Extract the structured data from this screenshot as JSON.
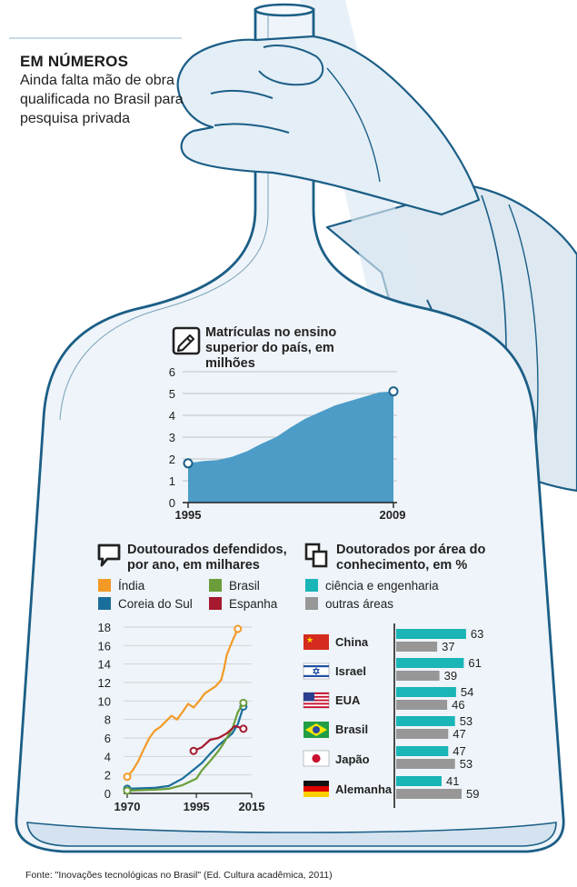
{
  "header": {
    "title": "EM NÚMEROS",
    "subtitle": "Ainda falta mão de obra qualificada no Brasil para pesquisa privada"
  },
  "source": "Fonte: \"Inovações tecnológicas no Brasil\" (Ed. Cultura acadêmica, 2011)",
  "colors": {
    "ink": "#1b5e86",
    "area": "#4c9cc7",
    "glass": "#e1ecf5"
  },
  "chart_data": [
    {
      "type": "area",
      "title": "Matrículas no ensino superior do país, em milhões",
      "icon": "pencil-icon",
      "x_labels": [
        "1995",
        "2009"
      ],
      "x": [
        1995,
        1996,
        1997,
        1998,
        1999,
        2000,
        2001,
        2002,
        2003,
        2004,
        2005,
        2006,
        2007,
        2008,
        2009
      ],
      "values": [
        1.8,
        1.9,
        1.95,
        2.1,
        2.35,
        2.7,
        3.0,
        3.45,
        3.85,
        4.15,
        4.45,
        4.65,
        4.85,
        5.05,
        5.1
      ],
      "ylim": [
        0,
        6
      ],
      "yticks": [
        0,
        1,
        2,
        3,
        4,
        5,
        6
      ],
      "grid": true
    },
    {
      "type": "line",
      "title": "Doutourados defendidos, por ano, em milhares",
      "icon": "speech-bubble-icon",
      "legend_position": "top",
      "xticks": [
        1970,
        1995,
        2015
      ],
      "xlim": [
        1970,
        2015
      ],
      "ylim": [
        0,
        18
      ],
      "yticks": [
        0,
        2,
        4,
        6,
        8,
        10,
        12,
        14,
        16,
        18
      ],
      "series": [
        {
          "name": "Índia",
          "color": "#f39a26",
          "x": [
            1970,
            1972,
            1974,
            1976,
            1978,
            1980,
            1982,
            1984,
            1986,
            1988,
            1990,
            1992,
            1994,
            1996,
            1998,
            2000,
            2002,
            2004,
            2005,
            2006,
            2008,
            2010
          ],
          "y": [
            1.8,
            2.5,
            3.5,
            4.8,
            6.0,
            6.8,
            7.2,
            7.8,
            8.4,
            8.0,
            8.8,
            9.7,
            9.3,
            10.0,
            10.8,
            11.2,
            11.6,
            12.3,
            13.5,
            15.0,
            16.5,
            17.8
          ]
        },
        {
          "name": "Coreia do Sul",
          "color": "#1a6e9b",
          "x": [
            1970,
            1980,
            1985,
            1990,
            1995,
            1997,
            2000,
            2003,
            2005,
            2008,
            2010,
            2012
          ],
          "y": [
            0.5,
            0.6,
            0.8,
            1.6,
            2.8,
            3.3,
            4.3,
            5.2,
            5.7,
            6.5,
            7.5,
            9.4
          ]
        },
        {
          "name": "Brasil",
          "color": "#6b9e3a",
          "x": [
            1970,
            1980,
            1985,
            1990,
            1995,
            1997,
            2000,
            2003,
            2005,
            2008,
            2010,
            2012
          ],
          "y": [
            0.3,
            0.4,
            0.5,
            0.9,
            1.6,
            2.5,
            3.5,
            4.6,
            5.5,
            7.0,
            8.8,
            9.8
          ]
        },
        {
          "name": "Espanha",
          "color": "#a6192e",
          "x": [
            1994,
            1997,
            2000,
            2003,
            2006,
            2009,
            2012
          ],
          "y": [
            4.6,
            5.0,
            5.8,
            6.0,
            6.5,
            7.3,
            7.0
          ]
        }
      ]
    },
    {
      "type": "bar",
      "orientation": "horizontal",
      "title": "Doutorados por área do conhecimento, em %",
      "icon": "document-icon",
      "series_names": [
        "ciência e engenharia",
        "outras áreas"
      ],
      "series_colors": [
        "#1ab5b6",
        "#979797"
      ],
      "categories": [
        {
          "label": "China",
          "flag": "china-flag-icon",
          "values": [
            63,
            37
          ]
        },
        {
          "label": "Israel",
          "flag": "israel-flag-icon",
          "values": [
            61,
            39
          ]
        },
        {
          "label": "EUA",
          "flag": "usa-flag-icon",
          "values": [
            54,
            46
          ]
        },
        {
          "label": "Brasil",
          "flag": "brazil-flag-icon",
          "values": [
            53,
            47
          ]
        },
        {
          "label": "Japão",
          "flag": "japan-flag-icon",
          "values": [
            47,
            53
          ]
        },
        {
          "label": "Alemanha",
          "flag": "germany-flag-icon",
          "values": [
            41,
            59
          ]
        }
      ],
      "xlim": [
        0,
        100
      ]
    }
  ]
}
